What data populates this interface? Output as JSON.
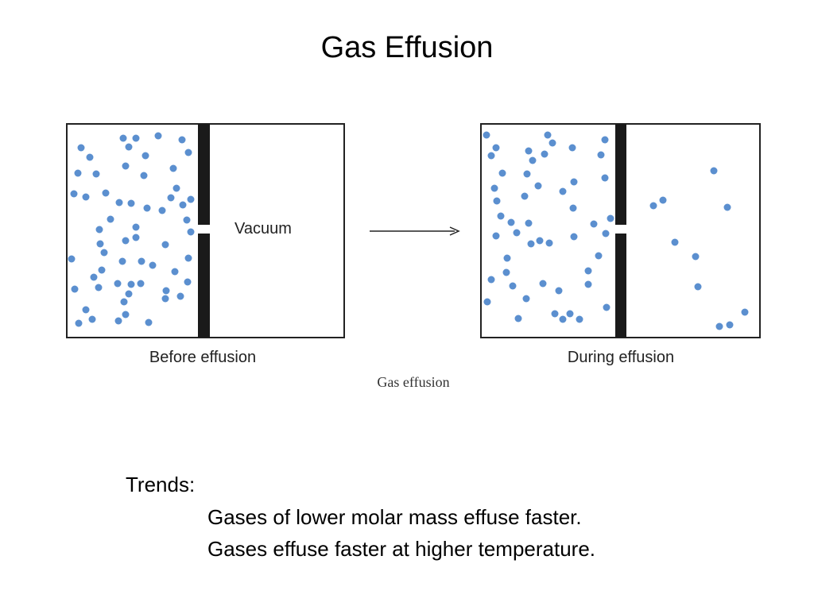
{
  "title": "Gas Effusion",
  "diagram": {
    "vacuum_label": "Vacuum",
    "before_label": "Before effusion",
    "during_label": "During effusion",
    "caption": "Gas effusion"
  },
  "trends": {
    "heading": "Trends:",
    "items": [
      "Gases of lower molar mass effuse faster.",
      "Gases effuse faster at higher temperature."
    ]
  }
}
